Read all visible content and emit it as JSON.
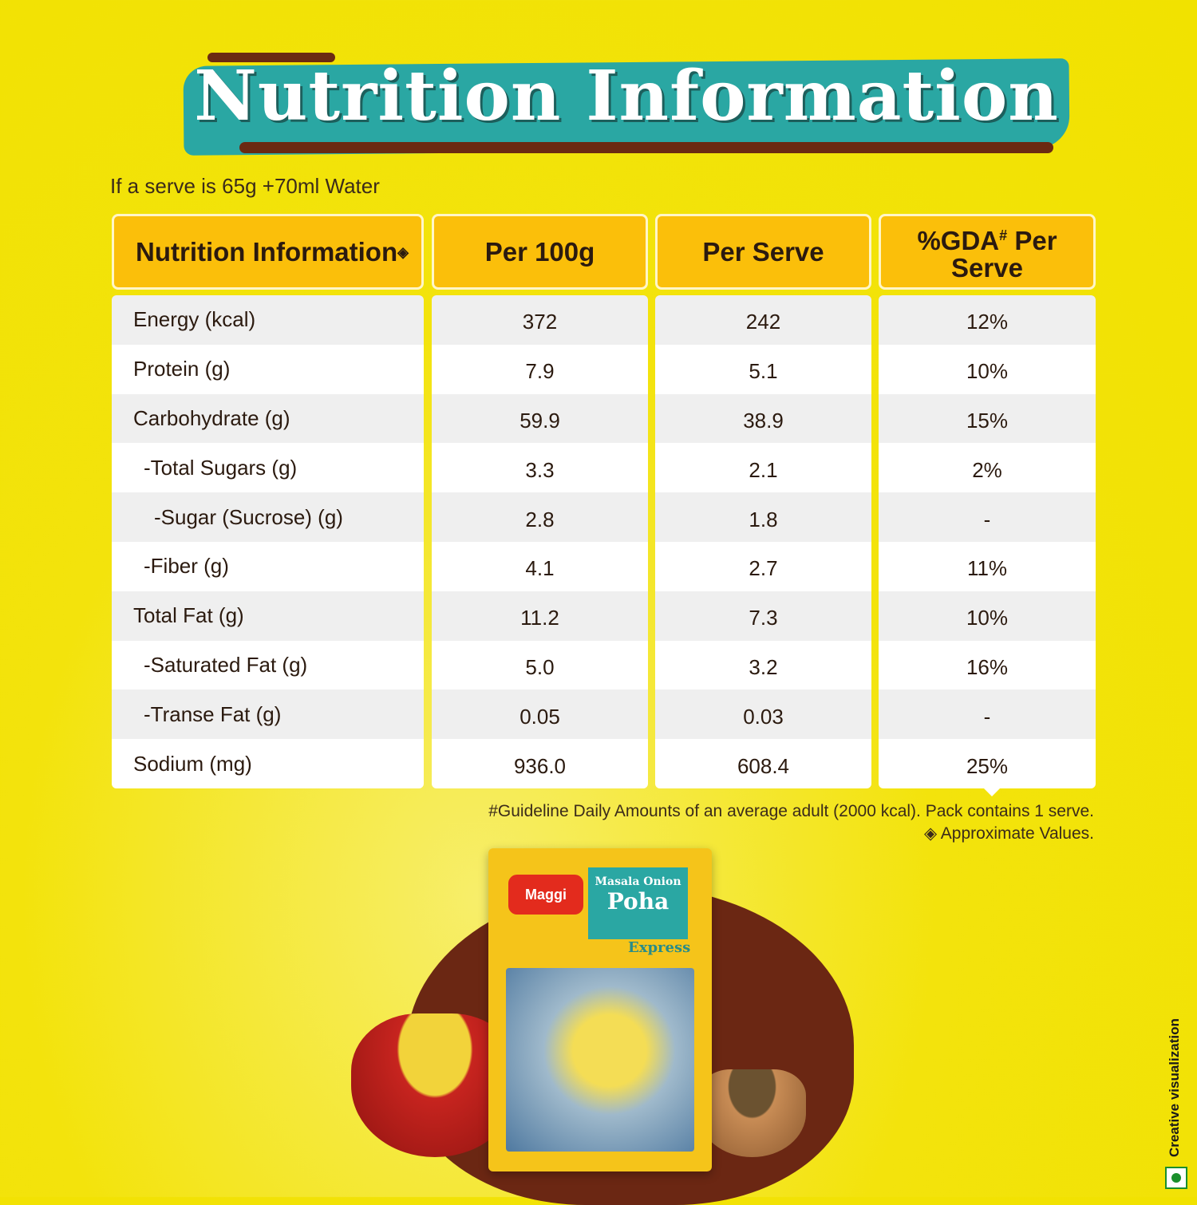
{
  "title": "Nutrition Information",
  "serve_note": "If a serve is 65g +70ml Water",
  "headers": [
    "Nutrition Information",
    "Per 100g",
    "Per Serve",
    "%GDA",
    "Per Serve"
  ],
  "header_marks": {
    "approx": "◈",
    "gda": "#"
  },
  "rows": [
    {
      "name": "Energy (kcal)",
      "per100": "372",
      "perServe": "242",
      "gda": "12%"
    },
    {
      "name": "Protein (g)",
      "per100": "7.9",
      "perServe": "5.1",
      "gda": "10%"
    },
    {
      "name": "Carbohydrate (g)",
      "per100": "59.9",
      "perServe": "38.9",
      "gda": "15%"
    },
    {
      "name": "-Total Sugars (g)",
      "per100": "3.3",
      "perServe": "2.1",
      "gda": "2%"
    },
    {
      "name": "-Sugar (Sucrose) (g)",
      "per100": "2.8",
      "perServe": "1.8",
      "gda": "-"
    },
    {
      "name": "-Fiber (g)",
      "per100": "4.1",
      "perServe": "2.7",
      "gda": "11%"
    },
    {
      "name": "Total Fat (g)",
      "per100": "11.2",
      "perServe": "7.3",
      "gda": "10%"
    },
    {
      "name": "-Saturated Fat (g)",
      "per100": "5.0",
      "perServe": "3.2",
      "gda": "16%"
    },
    {
      "name": "-Transe Fat (g)",
      "per100": "0.05",
      "perServe": "0.03",
      "gda": "-"
    },
    {
      "name": "Sodium (mg)",
      "per100": "936.0",
      "perServe": "608.4",
      "gda": "25%"
    }
  ],
  "notes": [
    "#Guideline Daily Amounts of an average adult (2000 kcal). Pack contains 1 serve.",
    "◈ Approximate Values."
  ],
  "pack": {
    "brand": "Maggi",
    "flavor": "Masala Onion",
    "product": "Poha",
    "variant": "Express"
  },
  "disclaimer": "Creative visualization",
  "colors": {
    "header": "#fbbf0a",
    "background": "#f1e200",
    "banner": "#2aa7a3",
    "text": "#2b1a0f"
  }
}
